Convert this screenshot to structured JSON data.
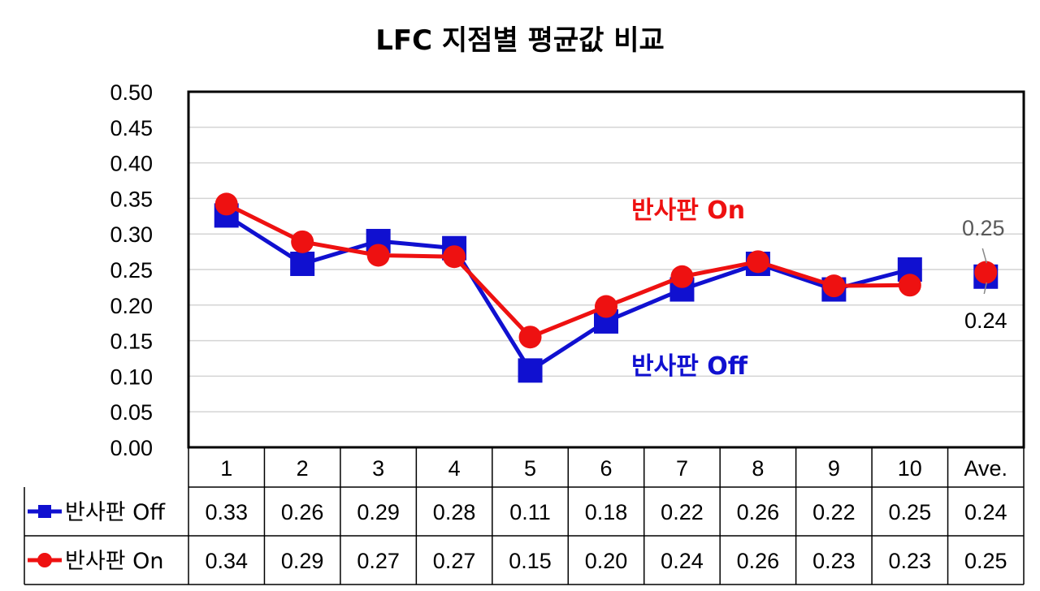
{
  "chart_data": {
    "type": "line",
    "title": "LFC 지점별 평균값 비교",
    "categories": [
      "1",
      "2",
      "3",
      "4",
      "5",
      "6",
      "7",
      "8",
      "9",
      "10",
      "Ave."
    ],
    "ylim": [
      0,
      0.5
    ],
    "yticks": [
      "0.00",
      "0.05",
      "0.10",
      "0.15",
      "0.20",
      "0.25",
      "0.30",
      "0.35",
      "0.40",
      "0.45",
      "0.50"
    ],
    "grid": true,
    "series": [
      {
        "name": "반사판 Off",
        "color": "#1010d0",
        "marker": "square",
        "values": [
          0.326,
          0.258,
          0.29,
          0.28,
          0.108,
          0.177,
          0.222,
          0.258,
          0.222,
          0.25,
          0.24
        ],
        "table": [
          "0.33",
          "0.26",
          "0.29",
          "0.28",
          "0.11",
          "0.18",
          "0.22",
          "0.26",
          "0.22",
          "0.25",
          "0.24"
        ],
        "annotation": "반사판 Off"
      },
      {
        "name": "반사판 On",
        "color": "#ee1111",
        "marker": "circle",
        "values": [
          0.342,
          0.289,
          0.27,
          0.268,
          0.155,
          0.198,
          0.24,
          0.261,
          0.227,
          0.228,
          0.246
        ],
        "table": [
          "0.34",
          "0.29",
          "0.27",
          "0.27",
          "0.15",
          "0.20",
          "0.24",
          "0.26",
          "0.23",
          "0.23",
          "0.25"
        ],
        "annotation": "반사판 On"
      }
    ],
    "average_labels": {
      "on": "0.25",
      "off": "0.24"
    }
  }
}
